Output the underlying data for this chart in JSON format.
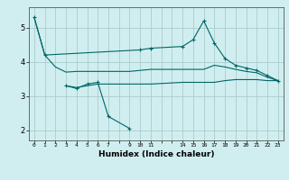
{
  "title": "",
  "xlabel": "Humidex (Indice chaleur)",
  "bg_color": "#d0eef0",
  "grid_color": "#aacccc",
  "line_color": "#006666",
  "xlim": [
    -0.5,
    23.5
  ],
  "ylim": [
    1.7,
    5.6
  ],
  "yticks": [
    2,
    3,
    4,
    5
  ],
  "xtick_positions": [
    0,
    1,
    2,
    3,
    4,
    5,
    6,
    7,
    9,
    10,
    11,
    14,
    15,
    16,
    17,
    18,
    19,
    20,
    21,
    22,
    23
  ],
  "xtick_labels": [
    "0",
    "1",
    "2",
    "3",
    "4",
    "5",
    "6",
    "7",
    "9",
    "1011",
    "",
    "14151617181920212223",
    "",
    "",
    "",
    "",
    "",
    "",
    "",
    "",
    ""
  ],
  "series": [
    {
      "x": [
        0,
        1,
        2,
        3,
        4,
        5,
        6,
        7,
        9,
        10,
        11,
        14,
        15,
        16,
        17,
        18,
        19,
        20,
        21,
        22,
        23
      ],
      "y": [
        5.3,
        4.2,
        3.85,
        3.7,
        3.72,
        3.72,
        3.72,
        3.72,
        3.72,
        3.75,
        3.78,
        3.78,
        3.78,
        3.78,
        3.9,
        3.85,
        3.78,
        3.72,
        3.68,
        3.55,
        3.45
      ],
      "has_markers": false
    },
    {
      "x": [
        0,
        1,
        10,
        11,
        14,
        15,
        16,
        17,
        18,
        19,
        20,
        21,
        22,
        23
      ],
      "y": [
        5.3,
        4.2,
        4.35,
        4.4,
        4.45,
        4.65,
        5.2,
        4.55,
        4.1,
        3.9,
        3.82,
        3.75,
        3.6,
        3.45
      ],
      "has_markers": true
    },
    {
      "x": [
        3,
        4,
        5,
        6,
        7,
        9,
        10,
        11,
        14,
        15,
        16,
        17,
        18,
        19,
        20,
        21,
        22,
        23
      ],
      "y": [
        3.3,
        3.25,
        3.3,
        3.35,
        3.35,
        3.35,
        3.35,
        3.35,
        3.4,
        3.4,
        3.4,
        3.4,
        3.45,
        3.48,
        3.48,
        3.48,
        3.45,
        3.45
      ],
      "has_markers": false
    },
    {
      "x": [
        3,
        4,
        5,
        6,
        7,
        9
      ],
      "y": [
        3.3,
        3.22,
        3.35,
        3.4,
        2.4,
        2.05
      ],
      "has_markers": true
    }
  ]
}
